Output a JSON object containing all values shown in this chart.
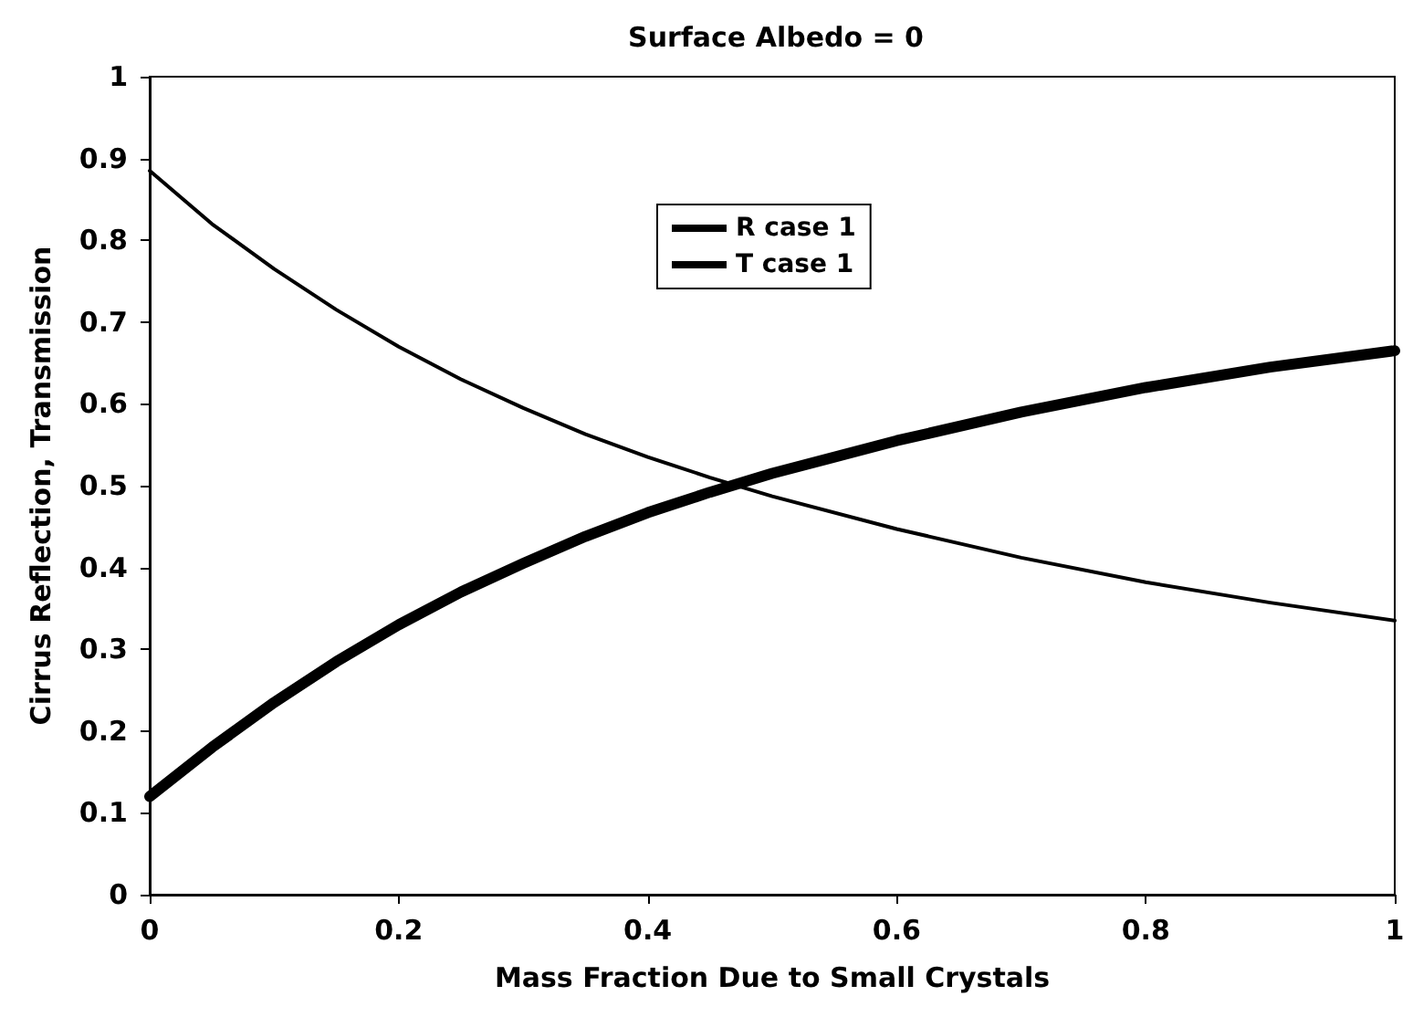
{
  "chart_data": {
    "type": "line",
    "title": "Surface Albedo = 0",
    "xlabel": "Mass Fraction Due to Small Crystals",
    "ylabel": "Cirrus Reflection, Transmission",
    "x": [
      0,
      0.05,
      0.1,
      0.15,
      0.2,
      0.25,
      0.3,
      0.35,
      0.4,
      0.45,
      0.5,
      0.6,
      0.7,
      0.8,
      0.9,
      1.0
    ],
    "series": [
      {
        "name": "R case 1",
        "color": "#000000",
        "values": [
          0.12,
          0.18,
          0.235,
          0.285,
          0.33,
          0.37,
          0.405,
          0.438,
          0.467,
          0.492,
          0.515,
          0.555,
          0.59,
          0.62,
          0.645,
          0.665
        ]
      },
      {
        "name": "T case 1",
        "color": "#000000",
        "values": [
          0.885,
          0.82,
          0.765,
          0.715,
          0.67,
          0.63,
          0.595,
          0.563,
          0.535,
          0.51,
          0.487,
          0.447,
          0.412,
          0.382,
          0.357,
          0.335
        ]
      }
    ],
    "xlim": [
      0,
      1
    ],
    "xticks": [
      0,
      0.2,
      0.4,
      0.6,
      0.8,
      1
    ],
    "ylim": [
      0,
      1
    ],
    "yticks": [
      0,
      0.1,
      0.2,
      0.3,
      0.4,
      0.5,
      0.6,
      0.7,
      0.8,
      0.9,
      1
    ],
    "grid": false,
    "legend": "top center",
    "marker": "none",
    "line_style": "solid"
  }
}
